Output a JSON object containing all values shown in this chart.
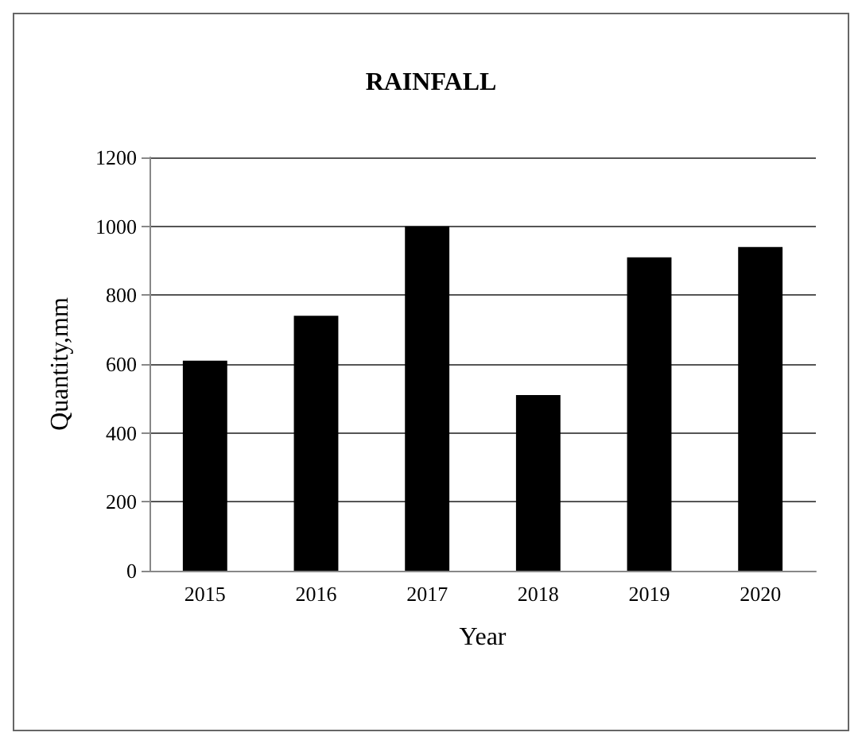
{
  "chart_data": {
    "type": "bar",
    "title": "RAINFALL",
    "xlabel": "Year",
    "ylabel": "Quantity,mm",
    "categories": [
      "2015",
      "2016",
      "2017",
      "2018",
      "2019",
      "2020"
    ],
    "values": [
      610,
      740,
      1000,
      510,
      910,
      940
    ],
    "color": "#000000",
    "ylim": [
      0,
      1200
    ],
    "yticks": [
      0,
      200,
      400,
      600,
      800,
      1000,
      1200
    ],
    "grid": "y"
  }
}
